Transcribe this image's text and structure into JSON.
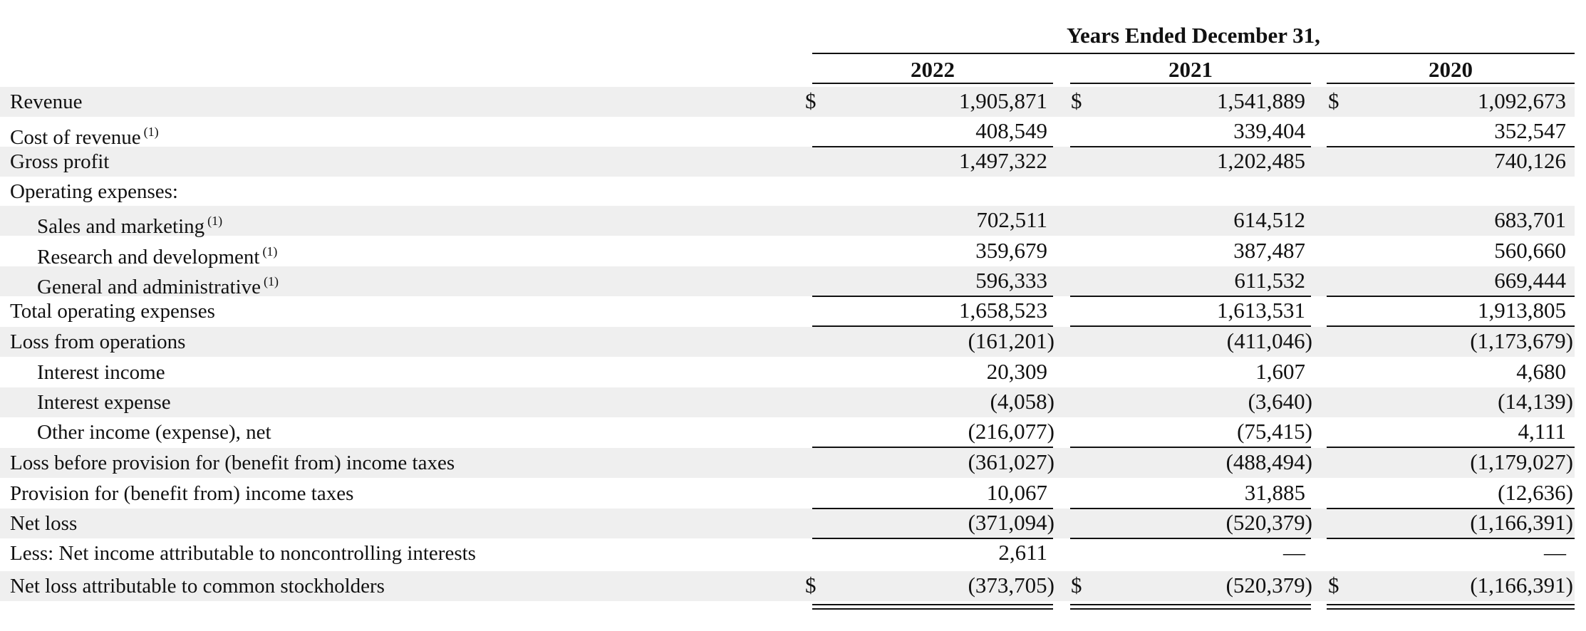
{
  "table": {
    "period_header": "Years Ended December 31,",
    "columns": [
      "2022",
      "2021",
      "2020"
    ],
    "currency_symbol": "$",
    "footnote_marker": "(1)",
    "rows": [
      {
        "label": "Revenue",
        "values": [
          "1,905,871",
          "1,541,889",
          "1,092,673"
        ],
        "currency": true
      },
      {
        "label": "Cost of revenue",
        "footnote": true,
        "values": [
          "408,549",
          "339,404",
          "352,547"
        ]
      },
      {
        "label": "Gross profit",
        "values": [
          "1,497,322",
          "1,202,485",
          "740,126"
        ]
      },
      {
        "label": "Operating expenses:",
        "values": [
          "",
          "",
          ""
        ]
      },
      {
        "label": "Sales and marketing",
        "footnote": true,
        "indent": true,
        "values": [
          "702,511",
          "614,512",
          "683,701"
        ]
      },
      {
        "label": "Research and development",
        "footnote": true,
        "indent": true,
        "values": [
          "359,679",
          "387,487",
          "560,660"
        ]
      },
      {
        "label": "General and administrative",
        "footnote": true,
        "indent": true,
        "values": [
          "596,333",
          "611,532",
          "669,444"
        ]
      },
      {
        "label": "Total operating expenses",
        "values": [
          "1,658,523",
          "1,613,531",
          "1,913,805"
        ]
      },
      {
        "label": "Loss from operations",
        "values": [
          "(161,201)",
          "(411,046)",
          "(1,173,679)"
        ]
      },
      {
        "label": "Interest income",
        "indent": true,
        "values": [
          "20,309",
          "1,607",
          "4,680"
        ]
      },
      {
        "label": "Interest expense",
        "indent": true,
        "values": [
          "(4,058)",
          "(3,640)",
          "(14,139)"
        ]
      },
      {
        "label": "Other income (expense), net",
        "indent": true,
        "values": [
          "(216,077)",
          "(75,415)",
          "4,111"
        ]
      },
      {
        "label": "Loss before provision for (benefit from) income taxes",
        "values": [
          "(361,027)",
          "(488,494)",
          "(1,179,027)"
        ]
      },
      {
        "label": "Provision for (benefit from) income taxes",
        "values": [
          "10,067",
          "31,885",
          "(12,636)"
        ]
      },
      {
        "label": "Net loss",
        "values": [
          "(371,094)",
          "(520,379)",
          "(1,166,391)"
        ]
      },
      {
        "label": "Less: Net income attributable to noncontrolling interests",
        "values": [
          "2,611",
          "—",
          "—"
        ]
      },
      {
        "label": "Net loss attributable to common stockholders",
        "values": [
          "(373,705)",
          "(520,379)",
          "(1,166,391)"
        ],
        "currency": true
      }
    ]
  }
}
